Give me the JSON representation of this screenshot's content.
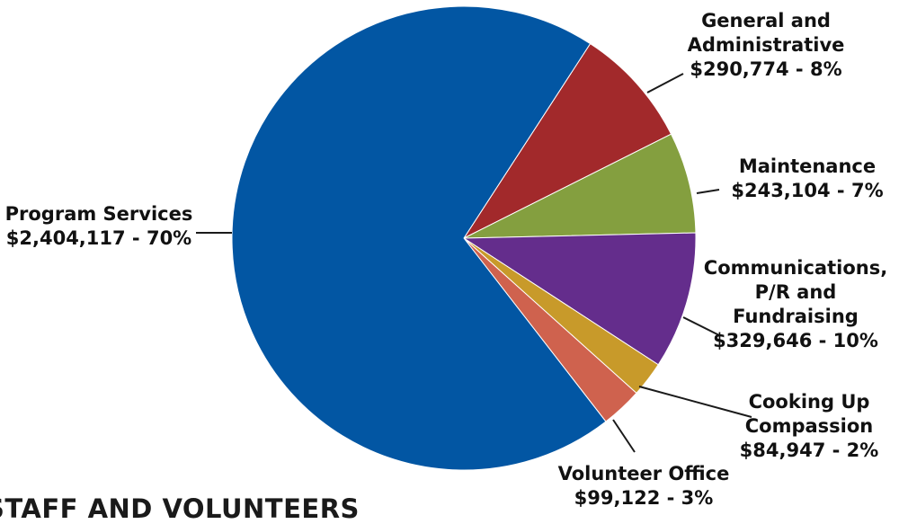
{
  "chart_data": {
    "type": "pie",
    "title": "",
    "slices": [
      {
        "name": "Program Services",
        "value": 2404117,
        "value_label": "$2,404,117 - 70%",
        "percent": 70,
        "color": "#0256a3"
      },
      {
        "name": "General and Administrative",
        "value": 290774,
        "value_label": "$290,774 - 8%",
        "percent": 8,
        "color": "#a2292b"
      },
      {
        "name": "Maintenance",
        "value": 243104,
        "value_label": "$243,104 - 7%",
        "percent": 7,
        "color": "#849f3f"
      },
      {
        "name": "Communications, P/R and Fundraising",
        "value": 329646,
        "value_label": "$329,646 - 10%",
        "percent": 10,
        "color": "#642d8c"
      },
      {
        "name": "Cooking Up Compassion",
        "value": 84947,
        "value_label": "$84,947 - 2%",
        "percent": 2,
        "color": "#c89a2a"
      },
      {
        "name": "Volunteer Office",
        "value": 99122,
        "value_label": "$99,122 - 3%",
        "percent": 3,
        "color": "#cf624e"
      }
    ],
    "legend": "none"
  },
  "footer_heading": "STAFF AND VOLUNTEERS"
}
